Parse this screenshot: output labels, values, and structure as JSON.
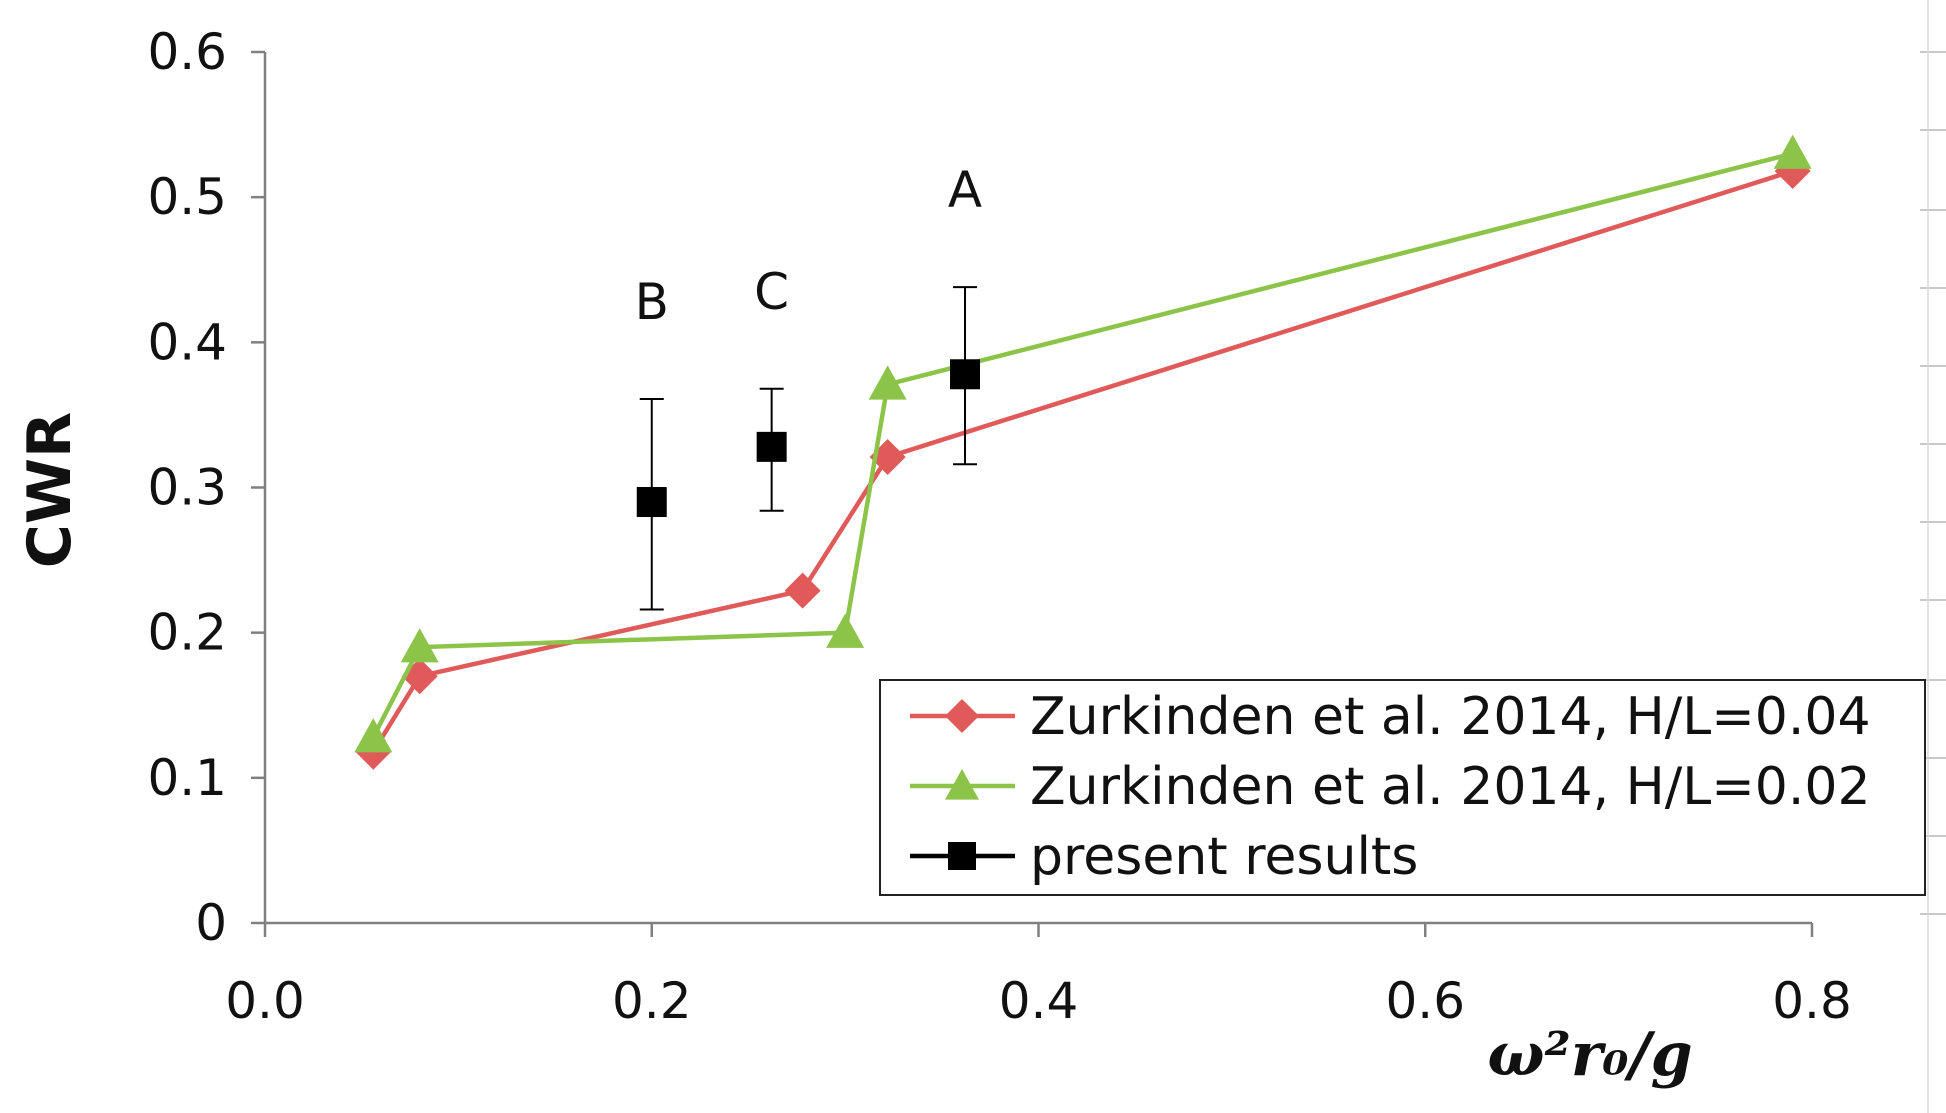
{
  "chart_data": {
    "type": "line",
    "title": "",
    "xlabel": "ω²r₀/g",
    "ylabel": "CWR",
    "xlim": [
      0,
      0.8
    ],
    "ylim": [
      0,
      0.6
    ],
    "xticks": [
      "0.0",
      "0.2",
      "0.4",
      "0.6",
      "0.8"
    ],
    "yticks": [
      "0",
      "0.1",
      "0.2",
      "0.3",
      "0.4",
      "0.5",
      "0.6"
    ],
    "grid": false,
    "legend_position": "bottom-right",
    "series": [
      {
        "name": "Zurkinden et al. 2014, H/L=0.04",
        "color": "#e05a5a",
        "marker": "diamond",
        "x": [
          0.056,
          0.08,
          0.278,
          0.322,
          0.79
        ],
        "y": [
          0.118,
          0.17,
          0.229,
          0.321,
          0.518
        ]
      },
      {
        "name": "Zurkinden et al. 2014, H/L=0.02",
        "color": "#8cc44a",
        "marker": "triangle",
        "x": [
          0.056,
          0.08,
          0.3,
          0.322,
          0.79
        ],
        "y": [
          0.128,
          0.19,
          0.2,
          0.371,
          0.53
        ]
      },
      {
        "name": "present results",
        "color": "#000000",
        "marker": "square",
        "line": false,
        "x": [
          0.2,
          0.262,
          0.362
        ],
        "y": [
          0.29,
          0.328,
          0.378
        ],
        "err_low": [
          0.216,
          0.284,
          0.316
        ],
        "err_high": [
          0.361,
          0.368,
          0.438
        ],
        "labels": [
          "B",
          "C",
          "A"
        ]
      }
    ]
  }
}
